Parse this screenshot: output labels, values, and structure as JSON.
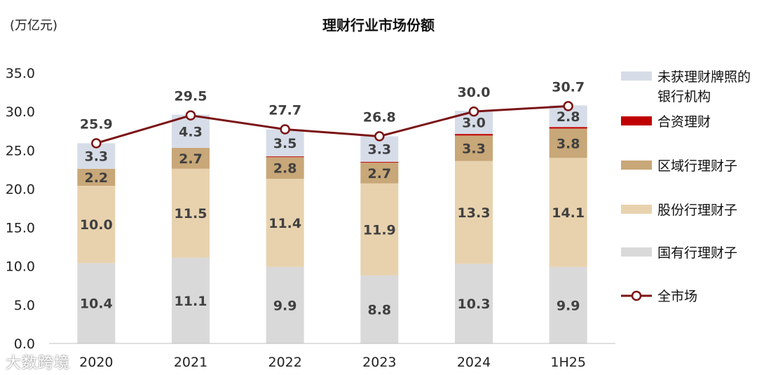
{
  "unit_label": "(万亿元)",
  "watermark": "大数跨境",
  "colors": {
    "state_owned": "#d9d9d9",
    "joint_stock": "#e8d2ae",
    "regional": "#c8a778",
    "joint_venture": "#c00000",
    "unlicensed": "#d6dde8",
    "total_line": "#7b1416"
  },
  "chart_data": {
    "type": "bar",
    "stacked": true,
    "title": "理财行业市场份额",
    "categories": [
      "2020",
      "2021",
      "2022",
      "2023",
      "2024",
      "1H25"
    ],
    "ylim": [
      0,
      35
    ],
    "yticks": [
      "0.0",
      "5.0",
      "10.0",
      "15.0",
      "20.0",
      "25.0",
      "30.0",
      "35.0"
    ],
    "series": [
      {
        "name": "国有行理财子",
        "key": "state_owned",
        "values": [
          10.4,
          11.1,
          9.9,
          8.8,
          10.3,
          9.9
        ],
        "labels": [
          "10.4",
          "11.1",
          "9.9",
          "8.8",
          "10.3",
          "9.9"
        ]
      },
      {
        "name": "股份行理财子",
        "key": "joint_stock",
        "values": [
          10.0,
          11.5,
          11.4,
          11.9,
          13.3,
          14.1
        ],
        "labels": [
          "10.0",
          "11.5",
          "11.4",
          "11.9",
          "13.3",
          "14.1"
        ]
      },
      {
        "name": "区域行理财子",
        "key": "regional",
        "values": [
          2.2,
          2.7,
          2.8,
          2.7,
          3.3,
          3.8
        ],
        "labels": [
          "2.2",
          "2.7",
          "2.8",
          "2.7",
          "3.3",
          "3.8"
        ]
      },
      {
        "name": "合资理财",
        "key": "joint_venture",
        "values": [
          0.0,
          0.0,
          0.1,
          0.1,
          0.2,
          0.2
        ],
        "labels": [
          "",
          "",
          "",
          "",
          "",
          ""
        ]
      },
      {
        "name": "未获理财牌照的银行机构",
        "key": "unlicensed",
        "values": [
          3.3,
          4.3,
          3.5,
          3.3,
          3.0,
          2.8
        ],
        "labels": [
          "3.3",
          "4.3",
          "3.5",
          "3.3",
          "3.0",
          "2.8"
        ]
      }
    ],
    "total": {
      "name": "全市场",
      "type": "line",
      "values": [
        25.9,
        29.5,
        27.7,
        26.8,
        30.0,
        30.7
      ],
      "labels": [
        "25.9",
        "29.5",
        "27.7",
        "26.8",
        "30.0",
        "30.7"
      ]
    },
    "legend": [
      "未获理财牌照的银行机构",
      "合资理财",
      "区域行理财子",
      "股份行理财子",
      "国有行理财子",
      "全市场"
    ],
    "legend_position": "right"
  }
}
